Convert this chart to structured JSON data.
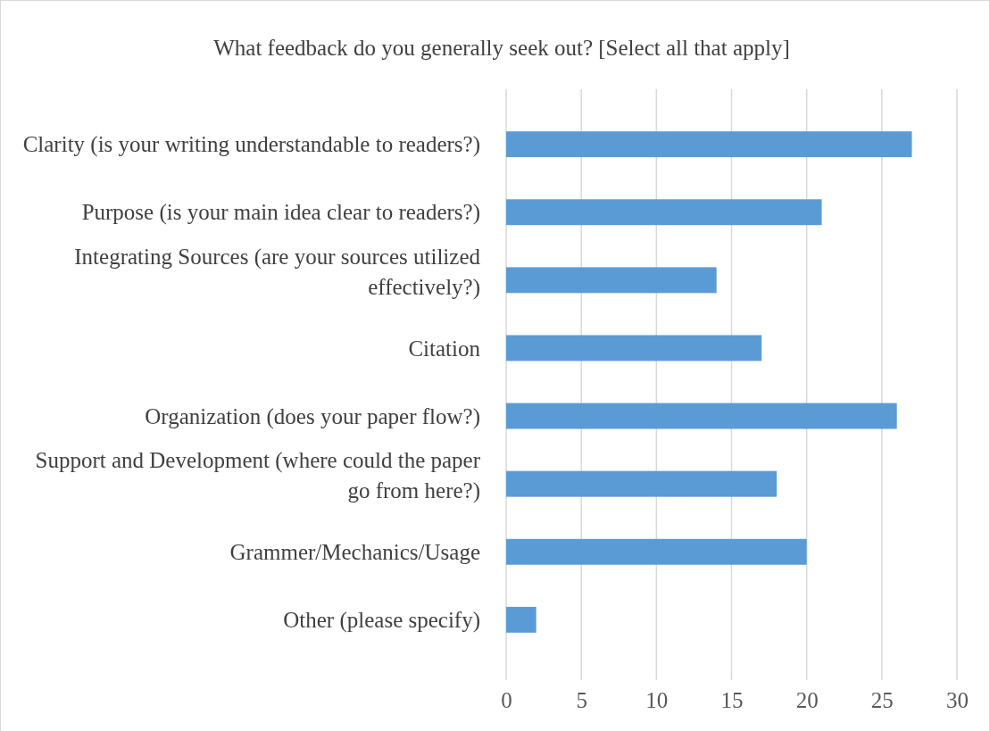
{
  "chart_data": {
    "type": "bar",
    "orientation": "horizontal",
    "title": "What feedback do you generally seek out? [Select all that apply]",
    "categories": [
      "Clarity (is your writing understandable to readers?)",
      "Purpose (is your main idea clear to readers?)",
      "Integrating Sources (are your sources utilized effectively?)",
      "Citation",
      "Organization (does your paper flow?)",
      "Support and Development (where could the paper go from here?)",
      "Grammer/Mechanics/Usage",
      "Other (please specify)"
    ],
    "values": [
      27,
      21,
      14,
      17,
      26,
      18,
      20,
      2
    ],
    "color": "#5b9bd5",
    "xlim": [
      0,
      30
    ],
    "xticks": [
      0,
      5,
      10,
      15,
      20,
      25,
      30
    ],
    "grid": "x"
  }
}
